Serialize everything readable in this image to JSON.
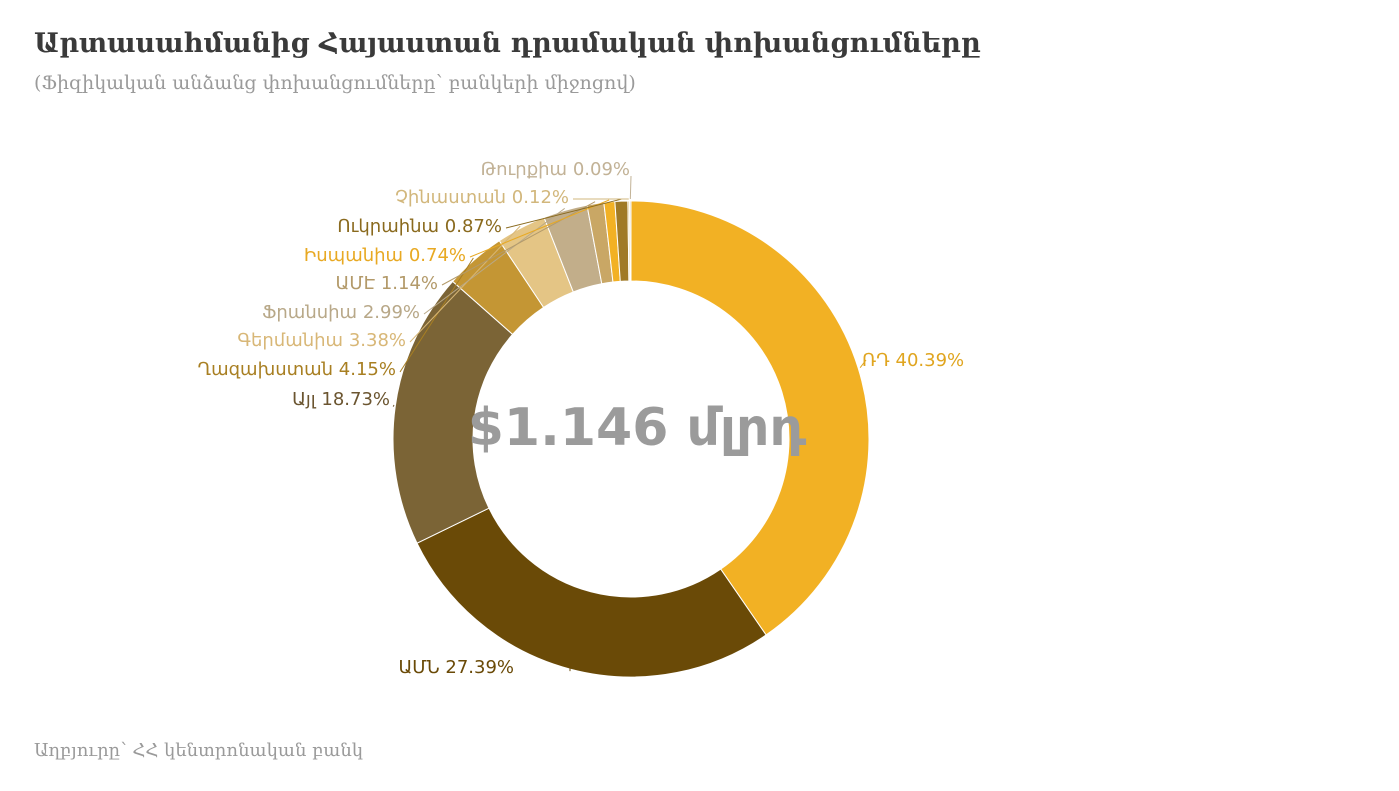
{
  "title": "Արտասահմանից Հայաստան դրամական փոխանցումները",
  "subtitle": "(Ֆիզիկական անձանց փոխանցումները՝ բանկերի միջոցով)",
  "source": "Աղբյուրը՝ ՀՀ կենտրոնական բանկ",
  "chart_data": {
    "type": "pie",
    "donut": true,
    "center_label": "$1.146 մլրդ",
    "title": "Արտասահմանից Հայաստան դրամական փոխանցումները",
    "subtitle": "(Ֆիզիկական անձանց փոխանցումները՝ բանկերի միջոցով)",
    "slices": [
      {
        "name": "ՌԴ",
        "value": 40.39,
        "label": "ՌԴ 40.39%",
        "color": "#f2b124",
        "label_color": "#e0a51f"
      },
      {
        "name": "ԱՄՆ",
        "value": 27.39,
        "label": "ԱՄՆ  27.39%",
        "color": "#6a4a07",
        "label_color": "#6a4a07"
      },
      {
        "name": "Այլ",
        "value": 18.73,
        "label": "Այլ 18.73%",
        "color": "#7b6436",
        "label_color": "#6b5530"
      },
      {
        "name": "Ղազախստան",
        "value": 4.15,
        "label": "Ղազախստան 4.15%",
        "color": "#c49634",
        "label_color": "#a87f22"
      },
      {
        "name": "Գերմանիա",
        "value": 3.38,
        "label": "Գերմանիա 3.38%",
        "color": "#e4c585",
        "label_color": "#d8b777"
      },
      {
        "name": "Ֆրանսիա",
        "value": 2.99,
        "label": "Ֆրանսիա 2.99%",
        "color": "#c2ae8a",
        "label_color": "#b8a888"
      },
      {
        "name": "ԱՄԷ",
        "value": 1.14,
        "label": "ԱՄԷ 1.14%",
        "color": "#c9a765",
        "label_color": "#b39a6a"
      },
      {
        "name": "Իսպանիա",
        "value": 0.74,
        "label": "Իսպանիա 0.74%",
        "color": "#f2b124",
        "label_color": "#e8a923"
      },
      {
        "name": "Ուկրաինա",
        "value": 0.87,
        "label": "Ուկրաինա 0.87%",
        "color": "#a07a26",
        "label_color": "#8a6a1e"
      },
      {
        "name": "Չինաստան",
        "value": 0.12,
        "label": "Չինաստան 0.12%",
        "color": "#e2c98e",
        "label_color": "#d2b77c"
      },
      {
        "name": "Թուրքիա",
        "value": 0.09,
        "label": "Թուրքիա 0.09%",
        "color": "#d2c2a6",
        "label_color": "#c2b296"
      }
    ]
  }
}
